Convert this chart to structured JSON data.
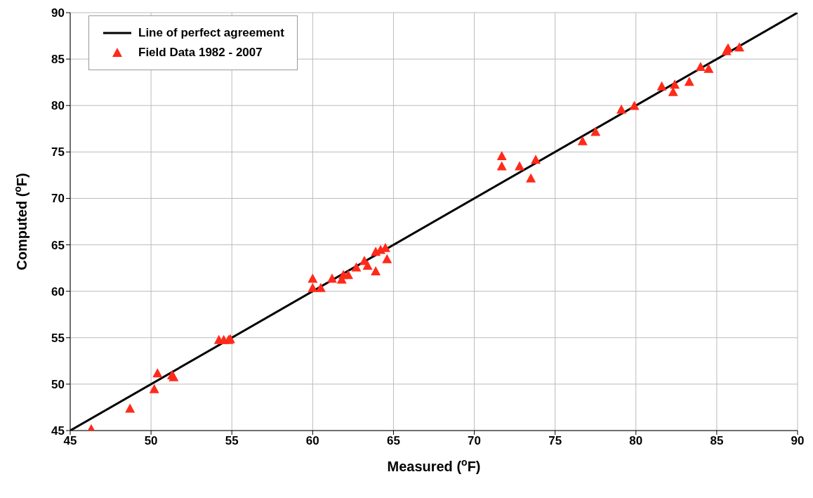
{
  "chart_data": {
    "type": "scatter",
    "xlabel": "Measured ($^{o}$F)",
    "ylabel": "Computed ($^{o}$F)",
    "xlim": [
      45,
      90
    ],
    "xticks": [
      45,
      50,
      55,
      60,
      65,
      70,
      75,
      80,
      85,
      90
    ],
    "ylim": [
      45,
      90
    ],
    "yticks": [
      45,
      50,
      55,
      60,
      65,
      70,
      75,
      80,
      85,
      90
    ],
    "grid": true,
    "legend": "top left",
    "series": [
      {
        "name": "Line of perfect agreement",
        "type": "line",
        "color": "#000000",
        "marker": "none",
        "line_style": "solid",
        "x": [
          45,
          90
        ],
        "values": [
          45,
          90
        ]
      },
      {
        "name": "Field  Data 1982 - 2007",
        "type": "scatter",
        "color": "#ff2a1a",
        "marker": "triangle",
        "x": [
          46.3,
          48.7,
          50.2,
          50.4,
          51.3,
          51.4,
          54.2,
          54.5,
          54.8,
          54.9,
          60.0,
          60.0,
          60.5,
          61.2,
          61.9,
          61.8,
          62.2,
          62.7,
          63.2,
          63.4,
          63.9,
          63.9,
          64.2,
          64.5,
          64.6,
          71.7,
          71.7,
          72.8,
          73.5,
          73.8,
          76.7,
          77.5,
          79.1,
          79.9,
          81.6,
          82.4,
          82.3,
          83.3,
          84.0,
          84.5,
          85.6,
          85.7,
          86.4
        ],
        "values": [
          45.1,
          47.3,
          49.4,
          51.1,
          50.9,
          50.7,
          54.7,
          54.7,
          54.7,
          54.8,
          61.3,
          60.3,
          60.3,
          61.3,
          61.7,
          61.2,
          61.7,
          62.5,
          63.2,
          62.7,
          62.1,
          64.2,
          64.4,
          64.6,
          63.4,
          74.5,
          73.4,
          73.4,
          72.1,
          74.1,
          76.1,
          77.1,
          79.5,
          79.9,
          82.0,
          82.2,
          81.4,
          82.5,
          84.1,
          83.9,
          85.8,
          86.1,
          86.2
        ]
      }
    ]
  }
}
